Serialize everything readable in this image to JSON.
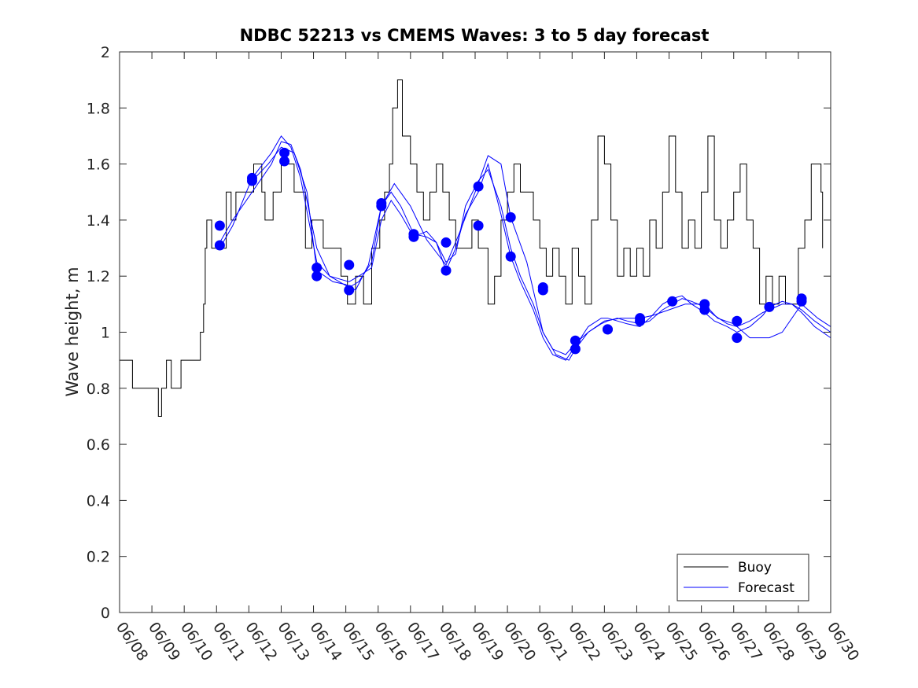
{
  "chart_data": {
    "type": "line",
    "title": "NDBC 52213 vs CMEMS Waves: 3 to 5 day forecast",
    "xlabel": "",
    "ylabel": "Wave height, m",
    "x_tick_labels": [
      "06/08",
      "06/09",
      "06/10",
      "06/11",
      "06/12",
      "06/13",
      "06/14",
      "06/15",
      "06/16",
      "06/17",
      "06/18",
      "06/19",
      "06/20",
      "06/21",
      "06/22",
      "06/23",
      "06/24",
      "06/25",
      "06/26",
      "06/27",
      "06/28",
      "06/29",
      "06/30"
    ],
    "xlim": [
      0,
      22
    ],
    "ylim": [
      0,
      2
    ],
    "y_ticks": [
      0,
      0.2,
      0.4,
      0.6,
      0.8,
      1,
      1.2,
      1.4,
      1.6,
      1.8,
      2
    ],
    "y_tick_labels": [
      "0",
      "0.2",
      "0.4",
      "0.6",
      "0.8",
      "1",
      "1.2",
      "1.4",
      "1.6",
      "1.8",
      "2"
    ],
    "grid": false,
    "legend": {
      "position": "bottom-right",
      "entries": [
        "Buoy",
        "Forecast"
      ]
    },
    "colors": {
      "buoy": "#000000",
      "forecast": "#0000ff",
      "axis": "#262626"
    },
    "x_units": "days after 06/08 00:00",
    "series": [
      {
        "name": "Buoy",
        "color": "#000000",
        "x": [
          0,
          0.4,
          1.0,
          1.2,
          1.3,
          1.45,
          1.6,
          1.9,
          2.2,
          2.5,
          2.6,
          2.65,
          2.7,
          2.85,
          3.3,
          3.45,
          3.6,
          4.15,
          4.4,
          4.5,
          4.75,
          5.0,
          5.4,
          5.75,
          5.95,
          6.3,
          6.55,
          6.85,
          7.05,
          7.3,
          7.55,
          7.8,
          8.05,
          8.2,
          8.25,
          8.35,
          8.45,
          8.6,
          8.75,
          9.0,
          9.2,
          9.4,
          9.6,
          9.8,
          10.0,
          10.2,
          10.4,
          10.7,
          10.9,
          11.1,
          11.4,
          11.6,
          11.8,
          12.0,
          12.2,
          12.4,
          12.6,
          12.8,
          13.0,
          13.2,
          13.4,
          13.6,
          13.8,
          14.0,
          14.2,
          14.4,
          14.6,
          14.8,
          15.0,
          15.2,
          15.4,
          15.6,
          15.8,
          16.0,
          16.2,
          16.4,
          16.6,
          16.8,
          17.0,
          17.2,
          17.4,
          17.6,
          17.8,
          18.0,
          18.2,
          18.4,
          18.6,
          18.8,
          19.0,
          19.2,
          19.4,
          19.6,
          19.8,
          20.0,
          20.2,
          20.4,
          20.6,
          20.8,
          21.0,
          21.2,
          21.4,
          21.7,
          21.75
        ],
        "y": [
          0.9,
          0.8,
          0.8,
          0.7,
          0.8,
          0.9,
          0.8,
          0.9,
          0.9,
          1.0,
          1.1,
          1.3,
          1.4,
          1.3,
          1.5,
          1.4,
          1.5,
          1.6,
          1.5,
          1.4,
          1.5,
          1.6,
          1.5,
          1.3,
          1.4,
          1.3,
          1.3,
          1.2,
          1.1,
          1.2,
          1.1,
          1.3,
          1.4,
          1.5,
          1.5,
          1.6,
          1.8,
          1.9,
          1.7,
          1.6,
          1.5,
          1.4,
          1.5,
          1.6,
          1.5,
          1.4,
          1.3,
          1.3,
          1.4,
          1.3,
          1.1,
          1.2,
          1.4,
          1.5,
          1.6,
          1.5,
          1.5,
          1.4,
          1.3,
          1.2,
          1.3,
          1.2,
          1.1,
          1.3,
          1.2,
          1.1,
          1.4,
          1.7,
          1.6,
          1.4,
          1.2,
          1.3,
          1.2,
          1.3,
          1.2,
          1.4,
          1.3,
          1.5,
          1.7,
          1.5,
          1.3,
          1.4,
          1.3,
          1.5,
          1.7,
          1.4,
          1.3,
          1.4,
          1.5,
          1.6,
          1.4,
          1.3,
          1.1,
          1.2,
          1.1,
          1.2,
          1.1,
          1.1,
          1.3,
          1.4,
          1.6,
          1.5,
          1.3
        ]
      },
      {
        "name": "Forecast",
        "color": "#0000ff",
        "x": [
          3.1,
          3.5,
          4.1,
          4.7,
          5.0,
          5.3,
          5.6,
          6.1,
          6.5,
          7.1,
          7.4,
          7.8,
          8.1,
          8.4,
          8.7,
          9.1,
          9.5,
          9.8,
          10.1,
          10.4,
          10.7,
          11.1,
          11.4,
          11.8,
          12.1,
          12.4,
          12.8,
          13.1,
          13.4,
          13.8,
          14.1,
          14.5,
          14.9,
          15.1,
          15.4,
          15.7,
          16.1,
          16.4,
          16.8,
          17.1,
          17.4,
          17.7,
          18.1,
          18.4,
          18.8,
          19.1,
          19.5,
          19.9,
          20.1,
          20.5,
          20.8,
          21.1,
          21.5,
          22.0
        ],
        "y": [
          1.32,
          1.4,
          1.5,
          1.6,
          1.68,
          1.67,
          1.58,
          1.3,
          1.2,
          1.16,
          1.18,
          1.25,
          1.45,
          1.5,
          1.45,
          1.35,
          1.34,
          1.32,
          1.25,
          1.28,
          1.45,
          1.54,
          1.58,
          1.45,
          1.3,
          1.2,
          1.1,
          1.0,
          0.94,
          0.92,
          0.96,
          1.0,
          1.03,
          1.04,
          1.05,
          1.04,
          1.03,
          1.04,
          1.08,
          1.1,
          1.12,
          1.11,
          1.09,
          1.06,
          1.03,
          1.02,
          1.04,
          1.07,
          1.08,
          1.1,
          1.1,
          1.08,
          1.04,
          1.0
        ]
      }
    ],
    "forecast_traces": [
      {
        "x": [
          3.1,
          3.5,
          4.1,
          4.7,
          5.0,
          5.3,
          5.6,
          6.1,
          6.5,
          7.1,
          7.4,
          7.8,
          8.1,
          8.4,
          8.7,
          9.1,
          9.5,
          9.8,
          10.1,
          10.4,
          10.7,
          11.1,
          11.4,
          11.8,
          12.1,
          12.4,
          12.8,
          13.1,
          13.4,
          13.8,
          14.1,
          14.5,
          14.9,
          15.1,
          15.4,
          15.7,
          16.1,
          16.4,
          16.8,
          17.1,
          17.4,
          17.7,
          18.1,
          18.4,
          18.8,
          19.1,
          19.5,
          19.9,
          20.1,
          20.5,
          20.8,
          21.1,
          21.5,
          22.0
        ],
        "y": [
          1.3,
          1.38,
          1.55,
          1.64,
          1.7,
          1.66,
          1.55,
          1.25,
          1.2,
          1.18,
          1.2,
          1.23,
          1.4,
          1.47,
          1.42,
          1.34,
          1.36,
          1.32,
          1.22,
          1.3,
          1.42,
          1.5,
          1.6,
          1.42,
          1.27,
          1.18,
          1.08,
          0.98,
          0.92,
          0.9,
          0.95,
          1.02,
          1.05,
          1.05,
          1.04,
          1.03,
          1.02,
          1.05,
          1.1,
          1.12,
          1.13,
          1.1,
          1.07,
          1.04,
          1.02,
          1.0,
          1.02,
          1.06,
          1.09,
          1.11,
          1.1,
          1.07,
          1.02,
          0.98
        ]
      },
      {
        "x": [
          4.1,
          4.6,
          5.0,
          5.4,
          5.8,
          6.1,
          6.6,
          7.0,
          7.3,
          7.7,
          8.1,
          8.5,
          9.0,
          9.5,
          10.1,
          10.5,
          11.0,
          11.4,
          11.8,
          12.1,
          12.6,
          13.1,
          13.5,
          13.9,
          14.1,
          14.5,
          15.0,
          15.5,
          16.1,
          16.5,
          17.0,
          17.5,
          18.1,
          18.5,
          19.0,
          19.5,
          20.1,
          20.5,
          21.1,
          21.6,
          22.0
        ],
        "y": [
          1.54,
          1.6,
          1.66,
          1.64,
          1.5,
          1.22,
          1.18,
          1.17,
          1.15,
          1.24,
          1.45,
          1.53,
          1.45,
          1.33,
          1.24,
          1.35,
          1.5,
          1.63,
          1.6,
          1.41,
          1.25,
          1.0,
          0.92,
          0.9,
          0.94,
          1.0,
          1.04,
          1.05,
          1.05,
          1.06,
          1.08,
          1.1,
          1.1,
          1.05,
          1.03,
          0.98,
          0.98,
          1.0,
          1.1,
          1.05,
          1.02
        ]
      }
    ],
    "forecast_dot_points": {
      "x": [
        3.1,
        3.1,
        4.1,
        4.1,
        5.1,
        5.1,
        6.1,
        6.1,
        7.1,
        7.1,
        8.1,
        8.1,
        9.1,
        9.1,
        10.1,
        10.1,
        11.1,
        11.1,
        12.1,
        12.1,
        13.1,
        13.1,
        14.1,
        14.1,
        15.1,
        15.1,
        16.1,
        16.1,
        17.1,
        18.1,
        18.1,
        19.1,
        19.1,
        20.1,
        21.1,
        21.1
      ],
      "y": [
        1.31,
        1.38,
        1.54,
        1.55,
        1.61,
        1.64,
        1.2,
        1.23,
        1.15,
        1.24,
        1.45,
        1.46,
        1.34,
        1.35,
        1.22,
        1.32,
        1.38,
        1.52,
        1.27,
        1.41,
        1.15,
        1.16,
        0.94,
        0.97,
        1.01,
        1.01,
        1.04,
        1.05,
        1.11,
        1.08,
        1.1,
        0.98,
        1.04,
        1.09,
        1.11,
        1.12
      ]
    }
  }
}
